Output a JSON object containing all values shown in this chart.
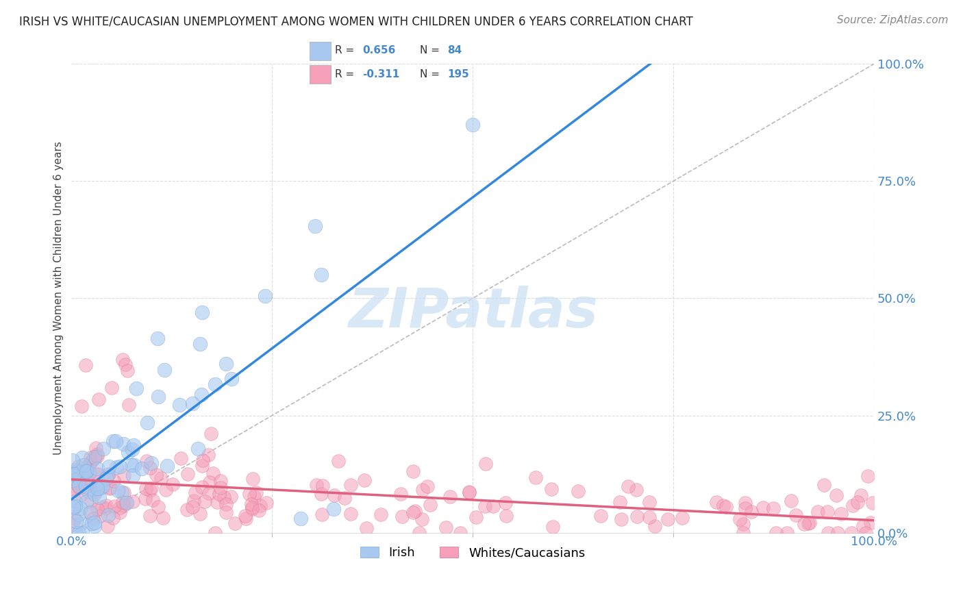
{
  "title": "IRISH VS WHITE/CAUCASIAN UNEMPLOYMENT AMONG WOMEN WITH CHILDREN UNDER 6 YEARS CORRELATION CHART",
  "source": "Source: ZipAtlas.com",
  "ylabel": "Unemployment Among Women with Children Under 6 years",
  "legend_irish": "Irish",
  "legend_white": "Whites/Caucasians",
  "irish_R": "0.656",
  "irish_N": "84",
  "white_R": "-0.311",
  "white_N": "195",
  "irish_color": "#A8C8F0",
  "irish_color_edge": "#7AAADA",
  "white_color": "#F5A0B8",
  "white_color_edge": "#E07090",
  "irish_line_color": "#3388DD",
  "white_line_color": "#E06080",
  "ref_line_color": "#BBBBBB",
  "grid_color": "#DDDDDD",
  "watermark_color": "#C8DFF5",
  "background_color": "#FFFFFF",
  "y_tick_vals": [
    0,
    25,
    50,
    75,
    100
  ],
  "x_tick_vals": [
    0,
    100
  ],
  "title_fontsize": 12,
  "source_fontsize": 11,
  "tick_fontsize": 13
}
